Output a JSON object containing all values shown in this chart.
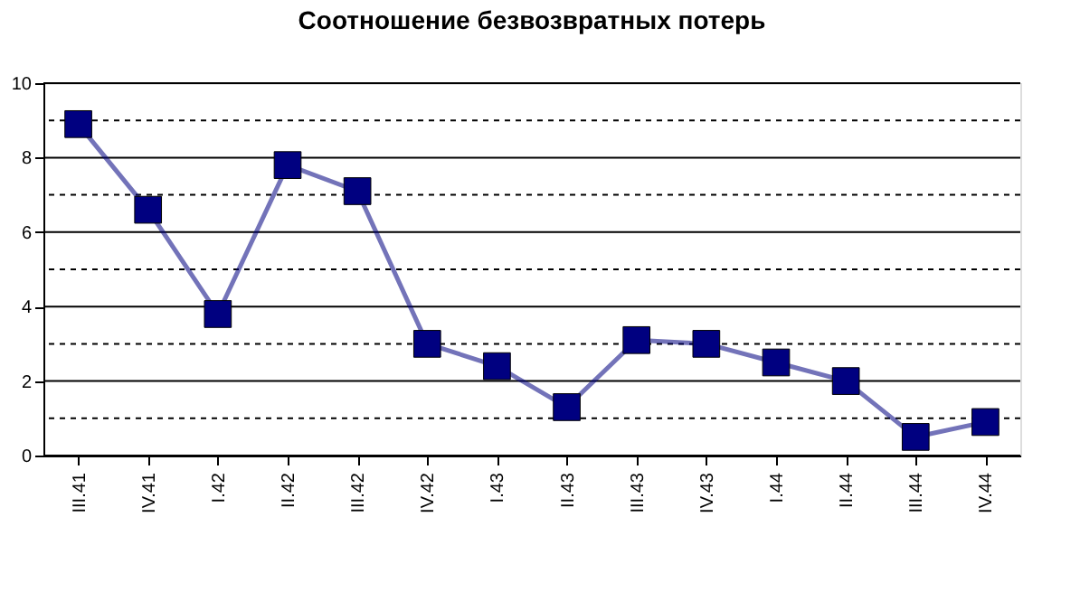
{
  "chart_data": {
    "type": "line",
    "title": "Соотношение безвозвратных потерь",
    "categories": [
      "III.41",
      "IV.41",
      "I.42",
      "II.42",
      "III.42",
      "IV.42",
      "I.43",
      "II.43",
      "III.43",
      "IV.43",
      "I.44",
      "II.44",
      "III.44",
      "IV.44"
    ],
    "series": [
      {
        "color": "#000080",
        "values": [
          8.9,
          6.6,
          3.8,
          7.8,
          7.1,
          3.0,
          2.4,
          1.3,
          3.1,
          3.0,
          2.5,
          2.0,
          0.5,
          0.9
        ]
      }
    ],
    "ylim": [
      0,
      10
    ],
    "yticks": [
      0,
      {
        "value": 1,
        "label": null
      },
      2,
      {
        "value": 3,
        "label": null
      },
      4,
      {
        "value": 5,
        "label": null
      },
      6,
      {
        "value": 7,
        "label": null
      },
      8,
      {
        "value": 9,
        "label": null
      },
      10
    ],
    "grid": "y",
    "marker": "square",
    "line_style": "solid"
  }
}
